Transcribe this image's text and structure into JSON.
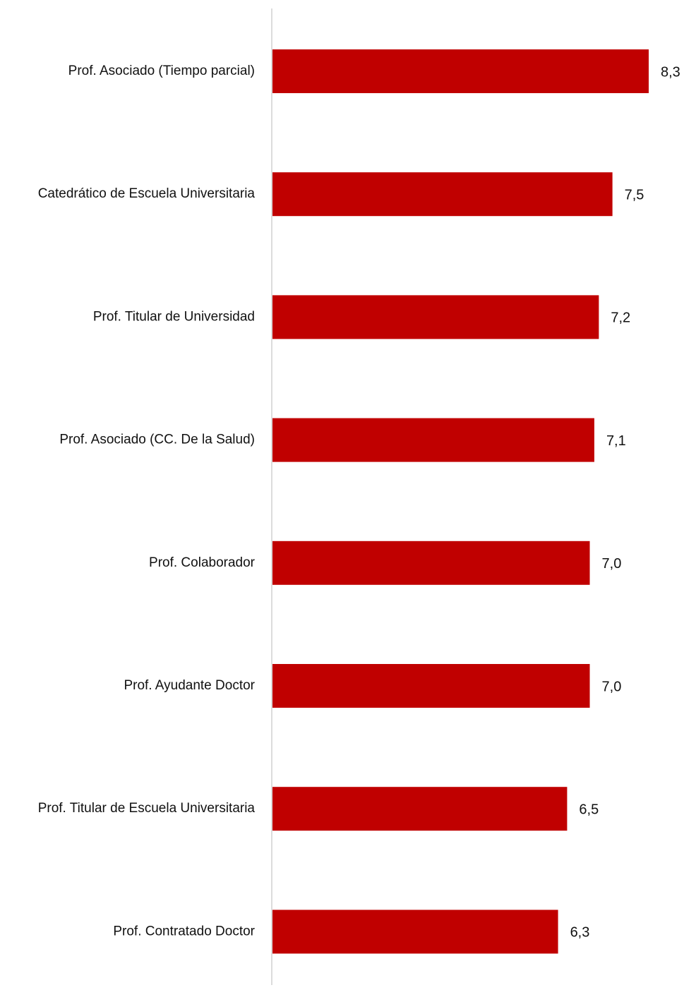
{
  "chart_data": {
    "type": "bar",
    "orientation": "horizontal",
    "categories": [
      "Prof. Asociado (Tiempo parcial)",
      "Catedrático de Escuela Universitaria",
      "Prof. Titular de Universidad",
      "Prof. Asociado (CC. De la Salud)",
      "Prof. Colaborador",
      "Prof. Ayudante Doctor",
      "Prof. Titular de Escuela Universitaria",
      "Prof. Contratado Doctor"
    ],
    "values": [
      8.3,
      7.5,
      7.2,
      7.1,
      7.0,
      7.0,
      6.5,
      6.3
    ],
    "value_labels": [
      "8,3",
      "7,5",
      "7,2",
      "7,1",
      "7,0",
      "7,0",
      "6,5",
      "6,3"
    ],
    "xlim": [
      0,
      8.3
    ],
    "bar_color": "#C00000",
    "axis_color": "#D0D0D0",
    "grid": false,
    "legend": "none"
  }
}
